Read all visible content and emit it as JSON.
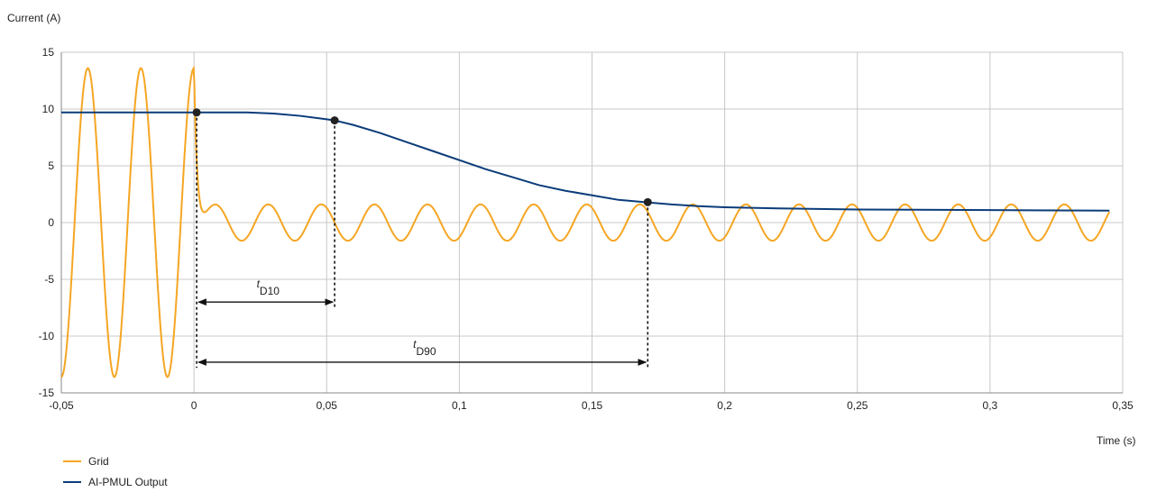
{
  "chart_data": {
    "type": "line",
    "ylabel": "Current (A)",
    "xlabel": "Time (s)",
    "xlim": [
      -0.05,
      0.35
    ],
    "ylim": [
      -15,
      15
    ],
    "x_ticks": [
      -0.05,
      0,
      0.05,
      0.1,
      0.15,
      0.2,
      0.25,
      0.3,
      0.35
    ],
    "x_tick_labels": [
      "-0,05",
      "0",
      "0,05",
      "0,1",
      "0,15",
      "0,2",
      "0,25",
      "0,3",
      "0,35"
    ],
    "y_ticks": [
      15,
      10,
      5,
      0,
      -5,
      -10,
      -15
    ],
    "y_tick_labels": [
      "15",
      "10",
      "5",
      "0",
      "-5",
      "-10",
      "-15"
    ],
    "grid": true,
    "legend_position": "bottom-left",
    "series": [
      {
        "name": "Grid",
        "color": "#F5A623",
        "description_points": {
          "pre_fault": {
            "t_end": 0.0,
            "amplitude": 13.6,
            "frequency_hz": 50
          },
          "post_fault": {
            "t_start": 0.0,
            "amplitude": 1.6,
            "frequency_hz": 50,
            "end": 0.345
          }
        },
        "x": [
          -0.05,
          -0.045,
          -0.04,
          -0.035,
          -0.03,
          -0.025,
          -0.02,
          -0.015,
          -0.01,
          -0.005,
          0.0,
          0.005,
          0.01,
          0.015,
          0.02,
          0.025,
          0.03,
          0.035,
          0.04,
          0.045,
          0.05,
          0.055,
          0.06,
          0.065,
          0.07,
          0.075,
          0.08,
          0.085,
          0.09,
          0.095,
          0.1,
          0.105,
          0.11,
          0.115,
          0.12,
          0.125,
          0.13,
          0.135,
          0.14,
          0.145,
          0.15,
          0.155,
          0.16,
          0.165,
          0.17,
          0.175,
          0.18,
          0.185,
          0.19,
          0.195,
          0.2,
          0.205,
          0.21,
          0.215,
          0.22,
          0.225,
          0.23,
          0.235,
          0.24,
          0.245,
          0.25,
          0.255,
          0.26,
          0.265,
          0.27,
          0.275,
          0.28,
          0.285,
          0.29,
          0.295,
          0.3,
          0.305,
          0.31,
          0.315,
          0.32,
          0.325,
          0.33,
          0.335,
          0.34,
          0.345
        ],
        "values": [
          -13.6,
          0,
          13.6,
          0,
          -13.6,
          0,
          13.6,
          0,
          -13.6,
          0,
          13.6,
          -1.6,
          0,
          1.6,
          0,
          -1.6,
          0,
          1.6,
          0,
          -1.6,
          0,
          1.6,
          0,
          -1.6,
          0,
          1.6,
          0,
          -1.6,
          0,
          1.6,
          0,
          -1.6,
          0,
          1.6,
          0,
          -1.6,
          0,
          1.6,
          0,
          -1.6,
          0,
          1.6,
          0,
          -1.6,
          0,
          1.6,
          0,
          -1.6,
          0,
          1.6,
          0,
          -1.6,
          0,
          1.6,
          0,
          -1.6,
          0,
          1.6,
          0,
          -1.6,
          0,
          1.6,
          0,
          -1.6,
          0,
          1.6,
          0,
          -1.6,
          0,
          1.6,
          0,
          -1.6,
          0,
          1.6,
          0,
          -1.6,
          0,
          1.6,
          0,
          1.2
        ]
      },
      {
        "name": "AI-PMUL Output",
        "color": "#0B3C7A",
        "x": [
          -0.05,
          0.0,
          0.02,
          0.03,
          0.04,
          0.05,
          0.053,
          0.06,
          0.07,
          0.08,
          0.09,
          0.1,
          0.11,
          0.12,
          0.13,
          0.14,
          0.15,
          0.16,
          0.17,
          0.18,
          0.19,
          0.2,
          0.22,
          0.25,
          0.3,
          0.345
        ],
        "values": [
          9.7,
          9.7,
          9.7,
          9.6,
          9.4,
          9.1,
          9.0,
          8.6,
          7.9,
          7.1,
          6.3,
          5.5,
          4.7,
          4.0,
          3.3,
          2.8,
          2.4,
          2.0,
          1.8,
          1.6,
          1.45,
          1.35,
          1.25,
          1.15,
          1.1,
          1.05
        ]
      }
    ],
    "markers": [
      {
        "x": 0.001,
        "y": 9.7
      },
      {
        "x": 0.053,
        "y": 9.0
      },
      {
        "x": 0.171,
        "y": 1.8
      }
    ],
    "annotations": [
      {
        "label_main": "t",
        "label_sub": "D10",
        "x_start": 0.001,
        "x_end": 0.053,
        "y": -7
      },
      {
        "label_main": "t",
        "label_sub": "D90",
        "x_start": 0.001,
        "x_end": 0.171,
        "y": -12.3
      }
    ]
  }
}
